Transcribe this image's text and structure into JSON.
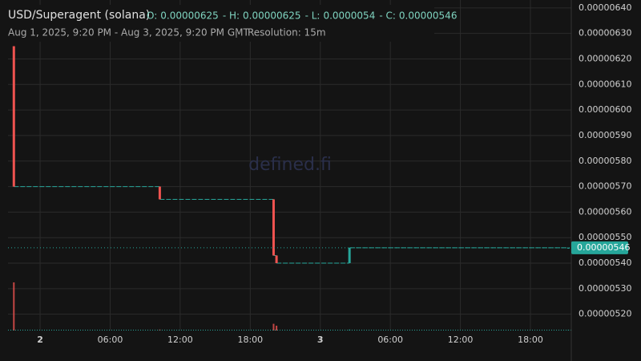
{
  "chart_data": {
    "type": "candlestick",
    "pair": "USD/Superagent (solana)",
    "ohlc_labels": [
      "O:",
      "- H:",
      "- L:",
      "- C:"
    ],
    "ohlc": [
      6.25e-06,
      6.25e-06,
      5.4e-06,
      5.46e-06
    ],
    "range": "Aug 1, 2025, 9:20 PM - Aug 3, 2025, 9:20 PM GMT",
    "resolution": "Resolution: 15m",
    "watermark": "defined.fi",
    "up_color": "#26a69a",
    "down_color": "#ef5350",
    "candles": [
      {
        "x": "2025-08-01 21:45",
        "open": 6.25e-06,
        "high": 6.25e-06,
        "low": 5.7e-06,
        "close": 5.7e-06,
        "volume": 100
      },
      {
        "x": "2025-08-02 10:15",
        "open": 5.7e-06,
        "high": 5.7e-06,
        "low": 5.65e-06,
        "close": 5.65e-06,
        "volume": 2
      },
      {
        "x": "2025-08-02 20:00",
        "open": 5.65e-06,
        "high": 5.65e-06,
        "low": 5.43e-06,
        "close": 5.43e-06,
        "volume": 14
      },
      {
        "x": "2025-08-02 20:15",
        "open": 5.43e-06,
        "high": 5.43e-06,
        "low": 5.4e-06,
        "close": 5.4e-06,
        "volume": 10
      },
      {
        "x": "2025-08-03 02:30",
        "open": 5.4e-06,
        "high": 5.46e-06,
        "low": 5.4e-06,
        "close": 5.46e-06,
        "volume": 2
      },
      {
        "x": "2025-08-03 21:15",
        "open": 5.46e-06,
        "high": 5.46e-06,
        "low": 5.46e-06,
        "close": 5.46e-06,
        "volume": 1
      }
    ],
    "xlim": [
      "2025-08-01 21:15",
      "2025-08-03 21:30"
    ],
    "xticks": [
      {
        "value": "2025-08-02 00:00",
        "label": "2"
      },
      {
        "value": "2025-08-02 06:00",
        "label": "06:00"
      },
      {
        "value": "2025-08-02 12:00",
        "label": "12:00"
      },
      {
        "value": "2025-08-02 18:00",
        "label": "18:00"
      },
      {
        "value": "2025-08-03 00:00",
        "label": "3"
      },
      {
        "value": "2025-08-03 06:00",
        "label": "06:00"
      },
      {
        "value": "2025-08-03 12:00",
        "label": "12:00"
      },
      {
        "value": "2025-08-03 18:00",
        "label": "18:00"
      }
    ],
    "ylim": [
      5.136e-06,
      6.431e-06
    ],
    "yticks": [
      {
        "value": 5.2e-06,
        "label": "0.00000520"
      },
      {
        "value": 5.3e-06,
        "label": "0.00000530"
      },
      {
        "value": 5.4e-06,
        "label": "0.00000540"
      },
      {
        "value": 5.5e-06,
        "label": "0.00000550"
      },
      {
        "value": 5.6e-06,
        "label": "0.00000560"
      },
      {
        "value": 5.7e-06,
        "label": "0.00000570"
      },
      {
        "value": 5.8e-06,
        "label": "0.00000580"
      },
      {
        "value": 5.9e-06,
        "label": "0.00000590"
      },
      {
        "value": 6e-06,
        "label": "0.00000600"
      },
      {
        "value": 6.1e-06,
        "label": "0.00000610"
      },
      {
        "value": 6.2e-06,
        "label": "0.00000620"
      },
      {
        "value": 6.3e-06,
        "label": "0.00000630"
      },
      {
        "value": 6.4e-06,
        "label": "0.00000640"
      }
    ],
    "grid": true
  }
}
